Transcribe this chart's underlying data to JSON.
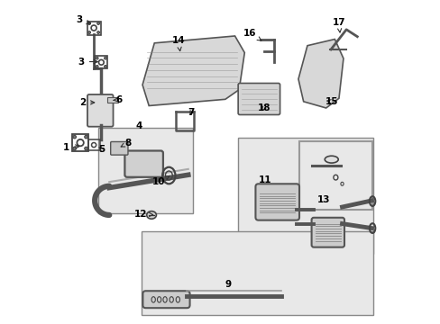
{
  "bg_color": "#ffffff",
  "box_bg": "#e8e8e8",
  "box_border": "#888888",
  "text_color": "#000000",
  "figsize": [
    4.89,
    3.6
  ],
  "dpi": 100
}
